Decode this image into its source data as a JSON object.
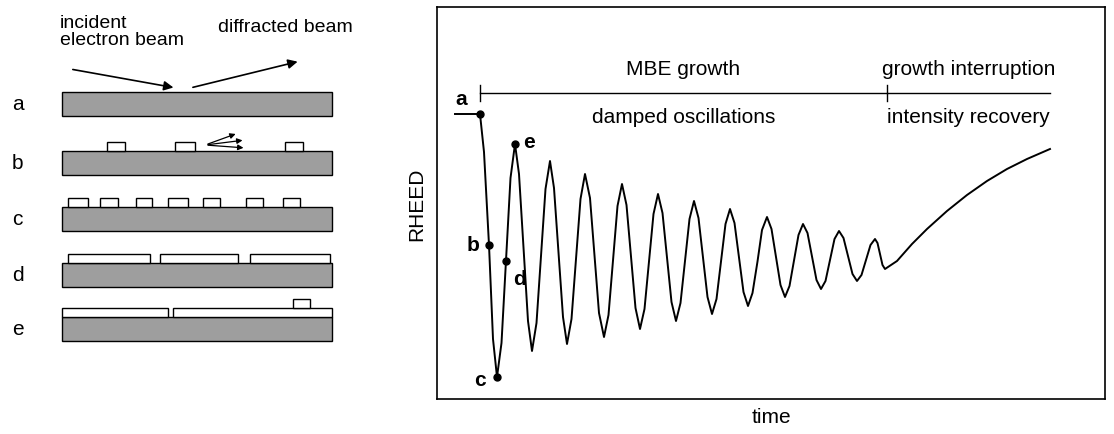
{
  "schematic": {
    "beam_labels": {
      "incident": "incident\nelectron beam",
      "diffracted": "diffracted beam"
    },
    "rows": [
      "a",
      "b",
      "c",
      "d",
      "e"
    ]
  },
  "chart_data": {
    "type": "line",
    "ylabel": "RHEED",
    "xlabel": "time",
    "color": "#000000",
    "tick_labels": false,
    "xlim": [
      0,
      668
    ],
    "ylim": [
      0,
      392
    ],
    "x": [
      18,
      43,
      47,
      52,
      56,
      60,
      64.5,
      69,
      73.5,
      78,
      82,
      86.5,
      91,
      95,
      99.5,
      104,
      108.5,
      113,
      117,
      121.5,
      126,
      130,
      134.5,
      139,
      143.5,
      148,
      153,
      157.5,
      162,
      167,
      171.5,
      176,
      180.5,
      185,
      189.5,
      194,
      198.5,
      203,
      207.5,
      212,
      216.5,
      221,
      225.5,
      230,
      234.5,
      239,
      243.5,
      248,
      252.5,
      257,
      261.5,
      266,
      270.5,
      275,
      279.5,
      284,
      288.5,
      293,
      297.5,
      302,
      306.5,
      311,
      315.5,
      320.5,
      325,
      330,
      334.5,
      339,
      343.5,
      348,
      352.5,
      357,
      361.5,
      366,
      370.5,
      375,
      379.5,
      384,
      388.5,
      393,
      397.5,
      402,
      406.5,
      411,
      415.5,
      420,
      424.5,
      429,
      433.5,
      438,
      440.5,
      443,
      445.5,
      448,
      460,
      475,
      490,
      510,
      530,
      550,
      570,
      590,
      613
    ],
    "values": [
      285,
      285,
      247,
      154,
      60,
      22,
      56,
      138.5,
      221,
      255,
      225,
      151.5,
      78,
      48,
      76,
      143,
      210,
      238,
      211,
      146.5,
      82,
      55,
      80,
      140,
      200,
      225,
      201,
      143.5,
      86,
      62,
      84,
      138.5,
      193,
      215,
      194,
      142.5,
      91,
      70,
      90,
      137.5,
      185,
      205,
      186,
      141.5,
      97,
      78,
      96,
      138,
      180,
      198,
      181,
      141.5,
      102,
      85,
      100,
      137.5,
      175,
      190,
      176,
      141.5,
      107,
      93,
      106,
      137.5,
      169,
      182,
      170,
      142,
      114,
      102,
      113,
      138.5,
      164,
      175,
      166,
      142.5,
      119,
      110,
      118,
      139,
      160,
      168,
      161,
      143,
      125,
      118,
      124,
      139,
      154,
      160,
      156,
      145,
      134,
      130,
      138,
      155,
      170,
      188,
      204,
      218,
      230,
      240,
      250
    ],
    "points": [
      {
        "label": "a",
        "x": 43,
        "y": 285
      },
      {
        "label": "b",
        "x": 52,
        "y": 154
      },
      {
        "label": "c",
        "x": 60,
        "y": 22
      },
      {
        "label": "d",
        "x": 69,
        "y": 138.5
      },
      {
        "label": "e",
        "x": 78,
        "y": 255
      }
    ],
    "phases": [
      {
        "label": "MBE growth",
        "sublabel": "damped oscillations",
        "start": 43,
        "end": 450
      },
      {
        "label": "growth interruption",
        "sublabel": "intensity recovery",
        "start": 450,
        "end": 613
      }
    ]
  }
}
